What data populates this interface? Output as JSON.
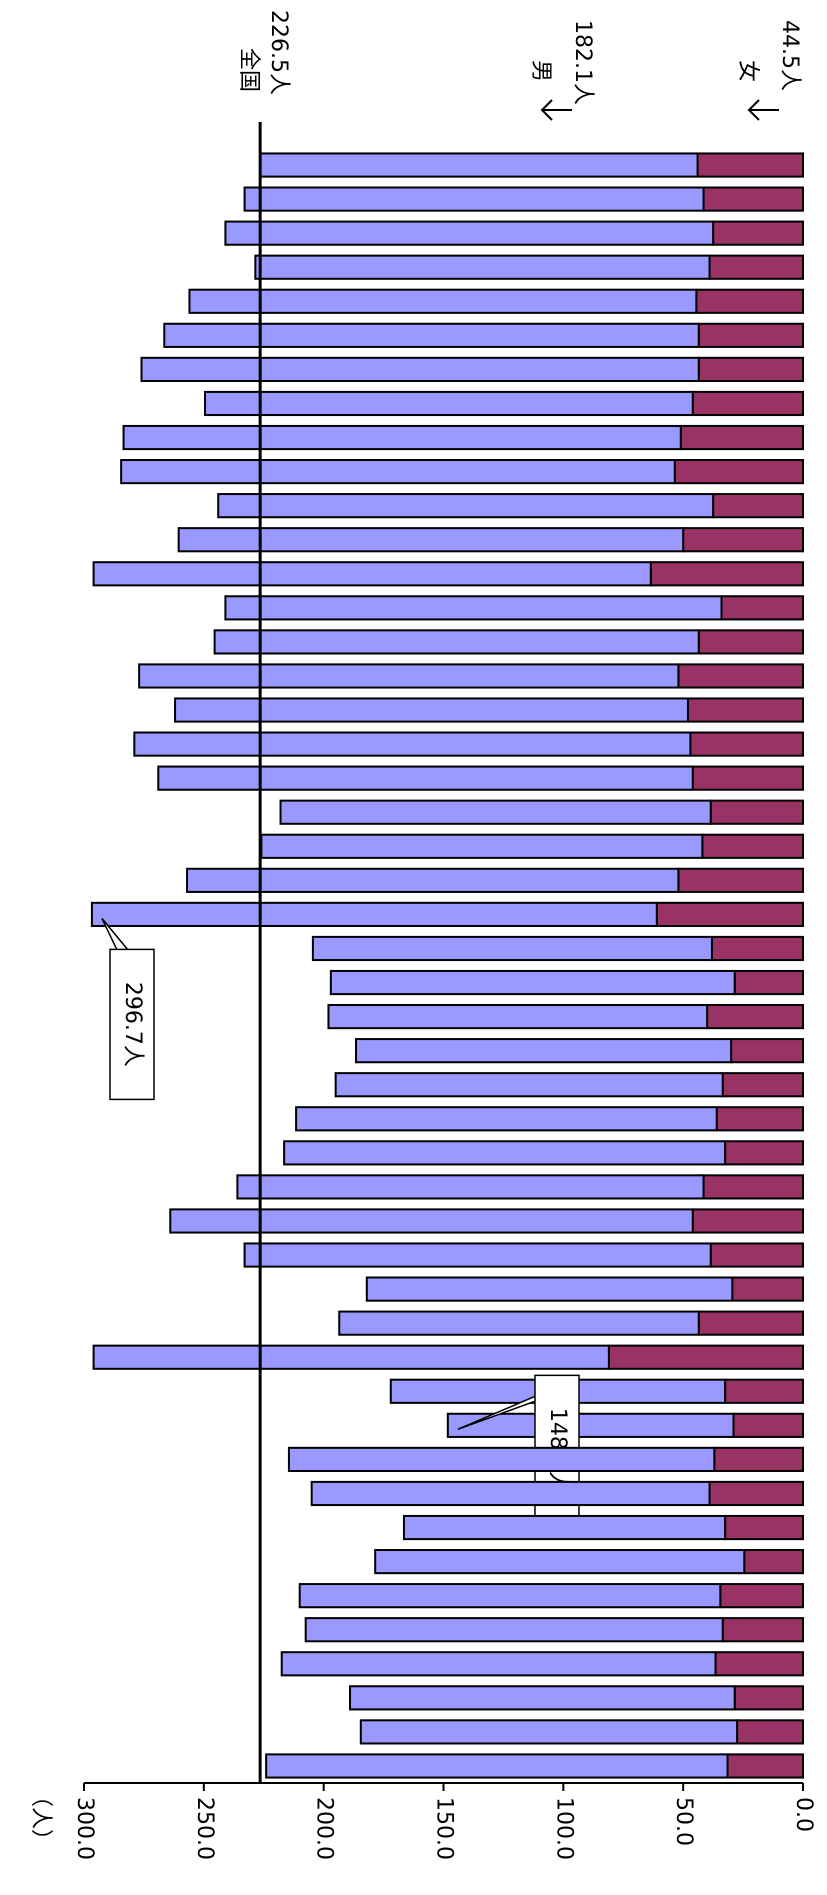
{
  "chart_data": {
    "type": "bar",
    "orientation": "horizontal",
    "stacked": true,
    "axis_label": "（人）",
    "categories": [
      null,
      null,
      null,
      null,
      null,
      null,
      null,
      null,
      null,
      null,
      null,
      null,
      null,
      null,
      null,
      null,
      null,
      null,
      null,
      null,
      null,
      null,
      null,
      null,
      null,
      null,
      null,
      null,
      null,
      null,
      null,
      null,
      null,
      null,
      null,
      null,
      null,
      null,
      null,
      null,
      null,
      null,
      null,
      null,
      null,
      null,
      null,
      null
    ],
    "series": [
      {
        "name": "女",
        "color": "#993366",
        "values": [
          44,
          41.5,
          37.5,
          39,
          44.5,
          43.5,
          43.5,
          46,
          51,
          53.5,
          37.5,
          50,
          63.5,
          34,
          43.5,
          52,
          48,
          47,
          46,
          38.5,
          42,
          52,
          61,
          38,
          28.5,
          40,
          30,
          33.5,
          36,
          32.5,
          41.5,
          46,
          38.5,
          29.5,
          43.5,
          81,
          32.5,
          29,
          37,
          39,
          32.5,
          24.5,
          34.5,
          33.5,
          36.5,
          28.5,
          27.5,
          31.5
        ]
      },
      {
        "name": "男",
        "color": "#9999ff",
        "values": [
          182.5,
          191.5,
          203.5,
          189.5,
          211.5,
          223,
          232.5,
          203.5,
          232.5,
          231,
          206.5,
          210.5,
          232.5,
          207,
          202,
          225,
          214,
          232,
          223,
          179.5,
          184,
          205,
          235.7,
          166.5,
          168.5,
          158,
          156.5,
          161.5,
          175.5,
          184,
          194.5,
          218,
          194.5,
          152.5,
          150,
          215,
          139.5,
          119.2,
          177.5,
          166,
          134,
          154,
          175.5,
          174,
          181,
          160.5,
          157,
          192.5
        ]
      }
    ],
    "total_labels": [
      null,
      null,
      null,
      null,
      null,
      null,
      null,
      null,
      null,
      null,
      null,
      null,
      null,
      null,
      null,
      null,
      null,
      null,
      null,
      null,
      null,
      null,
      "296.7人",
      null,
      null,
      null,
      null,
      null,
      null,
      null,
      null,
      null,
      null,
      null,
      null,
      null,
      null,
      "148.2人",
      null,
      null,
      null,
      null,
      null,
      null,
      null,
      null,
      null,
      null
    ],
    "reference_line": {
      "value": 226.5,
      "label": "全国",
      "value_label": "226.5人"
    },
    "legend_notes": [
      {
        "label": "男",
        "value_label": "182.1人"
      },
      {
        "label": "女",
        "value_label": "44.5人"
      }
    ],
    "xlim": [
      0,
      300
    ],
    "xticks": [
      {
        "value": 0,
        "label": "0.0"
      },
      {
        "value": 50,
        "label": "50.0"
      },
      {
        "value": 100,
        "label": "100.0"
      },
      {
        "value": 150,
        "label": "150.0"
      },
      {
        "value": 200,
        "label": "200.0"
      },
      {
        "value": 250,
        "label": "250.0"
      },
      {
        "value": 300,
        "label": "300.0"
      }
    ],
    "x_reversed": true
  }
}
